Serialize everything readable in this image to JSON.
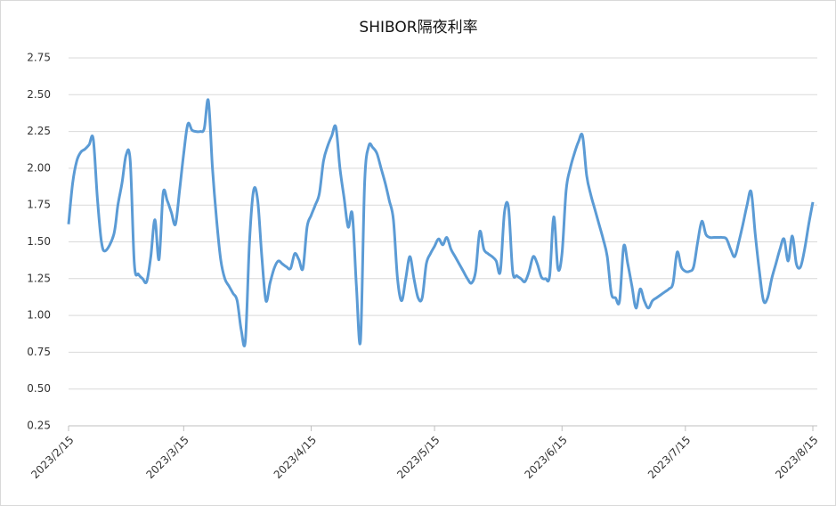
{
  "chart_data": {
    "type": "line",
    "title": "SHIBOR隔夜利率",
    "x": [
      "2023/2/15",
      "2023/2/16",
      "2023/2/17",
      "2023/2/18",
      "2023/2/19",
      "2023/2/20",
      "2023/2/21",
      "2023/2/22",
      "2023/2/23",
      "2023/2/24",
      "2023/2/26",
      "2023/2/27",
      "2023/2/28",
      "2023/3/1",
      "2023/3/2",
      "2023/3/3",
      "2023/3/4",
      "2023/3/5",
      "2023/3/6",
      "2023/3/7",
      "2023/3/8",
      "2023/3/9",
      "2023/3/10",
      "2023/3/11",
      "2023/3/12",
      "2023/3/13",
      "2023/3/14",
      "2023/3/15",
      "2023/3/16",
      "2023/3/17",
      "2023/3/18",
      "2023/3/19",
      "2023/3/20",
      "2023/3/21",
      "2023/3/22",
      "2023/3/23",
      "2023/3/24",
      "2023/3/25",
      "2023/3/26",
      "2023/3/27",
      "2023/3/28",
      "2023/3/29",
      "2023/3/30",
      "2023/3/31",
      "2023/4/1",
      "2023/4/2",
      "2023/4/3",
      "2023/4/4",
      "2023/4/5",
      "2023/4/6",
      "2023/4/7",
      "2023/4/8",
      "2023/4/9",
      "2023/4/10",
      "2023/4/11",
      "2023/4/12",
      "2023/4/13",
      "2023/4/14",
      "2023/4/15",
      "2023/4/16",
      "2023/4/17",
      "2023/4/18",
      "2023/4/19",
      "2023/4/20",
      "2023/4/21",
      "2023/4/22",
      "2023/4/23",
      "2023/4/24",
      "2023/4/25",
      "2023/4/26",
      "2023/4/27",
      "2023/4/28",
      "2023/4/29",
      "2023/4/30",
      "2023/5/1",
      "2023/5/2",
      "2023/5/3",
      "2023/5/4",
      "2023/5/5",
      "2023/5/6",
      "2023/5/7",
      "2023/5/8",
      "2023/5/9",
      "2023/5/10",
      "2023/5/11",
      "2023/5/12",
      "2023/5/13",
      "2023/5/14",
      "2023/5/15",
      "2023/5/16",
      "2023/5/17",
      "2023/5/18",
      "2023/5/19",
      "2023/5/20",
      "2023/5/21",
      "2023/5/22",
      "2023/5/23",
      "2023/5/24",
      "2023/5/25",
      "2023/5/26",
      "2023/5/27",
      "2023/5/28",
      "2023/5/29",
      "2023/5/30",
      "2023/5/31",
      "2023/6/1",
      "2023/6/2",
      "2023/6/3",
      "2023/6/4",
      "2023/6/5",
      "2023/6/6",
      "2023/6/7",
      "2023/6/8",
      "2023/6/9",
      "2023/6/10",
      "2023/6/11",
      "2023/6/12",
      "2023/6/13",
      "2023/6/14",
      "2023/6/15",
      "2023/6/16",
      "2023/6/17",
      "2023/6/18",
      "2023/6/19",
      "2023/6/20",
      "2023/6/21",
      "2023/6/22",
      "2023/6/23",
      "2023/6/24",
      "2023/6/25",
      "2023/6/26",
      "2023/6/27",
      "2023/6/28",
      "2023/6/29",
      "2023/6/30",
      "2023/7/1",
      "2023/7/2",
      "2023/7/3",
      "2023/7/4",
      "2023/7/5",
      "2023/7/6",
      "2023/7/7",
      "2023/7/8",
      "2023/7/9",
      "2023/7/10",
      "2023/7/11",
      "2023/7/12",
      "2023/7/13",
      "2023/7/14",
      "2023/7/15",
      "2023/7/16",
      "2023/7/17",
      "2023/7/18",
      "2023/7/19",
      "2023/7/20",
      "2023/7/21",
      "2023/7/22",
      "2023/7/23",
      "2023/7/24",
      "2023/7/25",
      "2023/7/26",
      "2023/7/27",
      "2023/7/28",
      "2023/7/29",
      "2023/7/30",
      "2023/7/31",
      "2023/8/1",
      "2023/8/2",
      "2023/8/3",
      "2023/8/4",
      "2023/8/5",
      "2023/8/6",
      "2023/8/7",
      "2023/8/8",
      "2023/8/9",
      "2023/8/10",
      "2023/8/11",
      "2023/8/12",
      "2023/8/13",
      "2023/8/14",
      "2023/8/15"
    ],
    "values": [
      1.62,
      1.9,
      2.05,
      2.11,
      2.13,
      2.16,
      2.2,
      1.8,
      1.5,
      1.44,
      1.55,
      1.75,
      1.9,
      2.09,
      2.05,
      1.35,
      1.28,
      1.25,
      1.23,
      1.4,
      1.65,
      1.38,
      1.83,
      1.78,
      1.7,
      1.62,
      1.85,
      2.1,
      2.3,
      2.26,
      2.25,
      2.25,
      2.27,
      2.46,
      2.0,
      1.65,
      1.38,
      1.25,
      1.2,
      1.15,
      1.1,
      0.9,
      0.83,
      1.5,
      1.85,
      1.78,
      1.4,
      1.1,
      1.22,
      1.32,
      1.37,
      1.35,
      1.33,
      1.32,
      1.42,
      1.38,
      1.32,
      1.6,
      1.68,
      1.75,
      1.83,
      2.05,
      2.15,
      2.22,
      2.28,
      2.0,
      1.8,
      1.6,
      1.69,
      1.2,
      0.83,
      1.9,
      2.15,
      2.14,
      2.1,
      2.0,
      1.9,
      1.78,
      1.65,
      1.25,
      1.1,
      1.25,
      1.4,
      1.25,
      1.12,
      1.12,
      1.35,
      1.42,
      1.47,
      1.52,
      1.48,
      1.53,
      1.45,
      1.4,
      1.35,
      1.3,
      1.25,
      1.22,
      1.3,
      1.57,
      1.45,
      1.42,
      1.4,
      1.37,
      1.3,
      1.7,
      1.73,
      1.3,
      1.27,
      1.25,
      1.23,
      1.3,
      1.4,
      1.35,
      1.26,
      1.25,
      1.27,
      1.67,
      1.32,
      1.42,
      1.85,
      2.0,
      2.1,
      2.18,
      2.22,
      1.95,
      1.82,
      1.72,
      1.62,
      1.52,
      1.4,
      1.15,
      1.12,
      1.1,
      1.47,
      1.35,
      1.2,
      1.05,
      1.18,
      1.1,
      1.05,
      1.1,
      1.12,
      1.14,
      1.16,
      1.18,
      1.22,
      1.43,
      1.33,
      1.3,
      1.3,
      1.33,
      1.5,
      1.64,
      1.55,
      1.53,
      1.53,
      1.53,
      1.53,
      1.52,
      1.45,
      1.4,
      1.5,
      1.62,
      1.75,
      1.84,
      1.55,
      1.3,
      1.1,
      1.12,
      1.25,
      1.35,
      1.45,
      1.52,
      1.37,
      1.54,
      1.35,
      1.33,
      1.45,
      1.62,
      1.77
    ],
    "color": "#5b9bd5",
    "xlim": [
      "2023/2/15",
      "2023/8/15"
    ],
    "xticks": [
      "2023/2/15",
      "2023/3/15",
      "2023/4/15",
      "2023/5/15",
      "2023/6/15",
      "2023/7/15",
      "2023/8/15"
    ],
    "ylim": [
      0.25,
      2.75
    ],
    "yticks": [
      0.25,
      {
        "value": 0.5,
        "label": "0.50"
      },
      0.75,
      {
        "value": 1,
        "label": "1.00"
      },
      1.25,
      {
        "value": 1.5,
        "label": "1.50"
      },
      1.75,
      {
        "value": 2,
        "label": "2.00"
      },
      2.25,
      {
        "value": 2.5,
        "label": "2.50"
      },
      2.75
    ],
    "grid": true
  }
}
